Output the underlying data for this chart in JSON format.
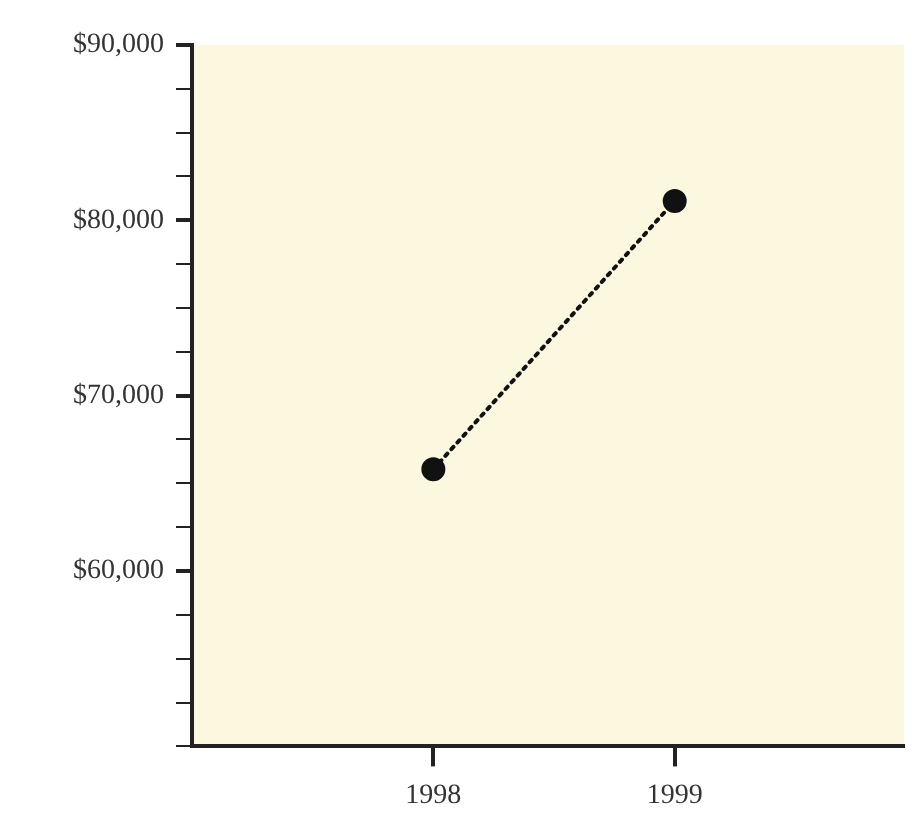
{
  "chart_data": {
    "type": "line",
    "x": [
      1998,
      1999
    ],
    "series": [
      {
        "color": "#111111",
        "values": [
          65800,
          81100
        ]
      }
    ],
    "xlim": [
      1997,
      1999.95
    ],
    "xticks": [
      1998,
      1999
    ],
    "ylim": [
      50000,
      90000
    ],
    "yticks": [
      {
        "value": 50000,
        "label": null
      },
      {
        "value": 52500,
        "label": null
      },
      {
        "value": 55000,
        "label": null
      },
      {
        "value": 57500,
        "label": null
      },
      {
        "value": 60000,
        "label": "$60,000"
      },
      {
        "value": 62500,
        "label": null
      },
      {
        "value": 65000,
        "label": null
      },
      {
        "value": 67500,
        "label": null
      },
      {
        "value": 70000,
        "label": "$70,000"
      },
      {
        "value": 72500,
        "label": null
      },
      {
        "value": 75000,
        "label": null
      },
      {
        "value": 77500,
        "label": null
      },
      {
        "value": 80000,
        "label": "$80,000"
      },
      {
        "value": 82500,
        "label": null
      },
      {
        "value": 85000,
        "label": null
      },
      {
        "value": 87500,
        "label": null
      },
      {
        "value": 90000,
        "label": "$90,000"
      }
    ],
    "marker": "circle",
    "line_style": "dotted",
    "grid": false,
    "legend": false
  }
}
